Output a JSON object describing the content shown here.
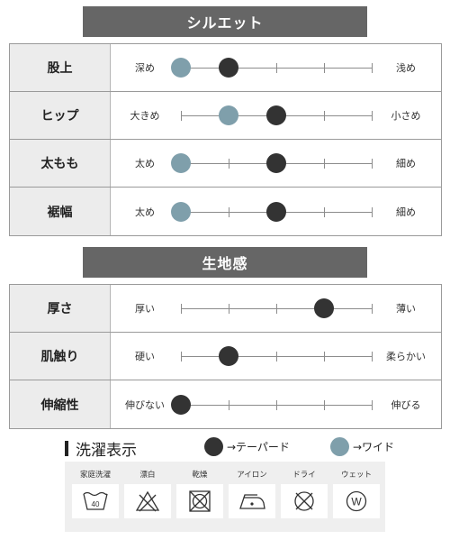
{
  "silhouette": {
    "title": "シルエット",
    "rows": [
      {
        "label": "股上",
        "left": "深め",
        "right": "浅め",
        "wide": 1,
        "taper": 2
      },
      {
        "label": "ヒップ",
        "left": "大きめ",
        "right": "小さめ",
        "wide": 2,
        "taper": 3
      },
      {
        "label": "太もも",
        "left": "太め",
        "right": "細め",
        "wide": 1,
        "taper": 3
      },
      {
        "label": "裾幅",
        "left": "太め",
        "right": "細め",
        "wide": 1,
        "taper": 3
      }
    ]
  },
  "fabric": {
    "title": "生地感",
    "rows": [
      {
        "label": "厚さ",
        "left": "厚い",
        "right": "薄い",
        "value": 4
      },
      {
        "label": "肌触り",
        "left": "硬い",
        "right": "柔らかい",
        "value": 2
      },
      {
        "label": "伸縮性",
        "left": "伸びない",
        "right": "伸びる",
        "value": 1
      }
    ]
  },
  "care": {
    "title": "洗濯表示",
    "items": [
      {
        "caption": "家庭洗濯",
        "icon": "wash-40-icon",
        "temp": "40"
      },
      {
        "caption": "漂白",
        "icon": "no-bleach-icon"
      },
      {
        "caption": "乾燥",
        "icon": "no-tumble-dry-icon"
      },
      {
        "caption": "アイロン",
        "icon": "iron-low-icon"
      },
      {
        "caption": "ドライ",
        "icon": "no-dry-clean-icon"
      },
      {
        "caption": "ウェット",
        "icon": "wet-clean-icon",
        "mark": "W"
      }
    ]
  },
  "legend": {
    "tapered": "→テーパード",
    "wide": "→ワイド"
  },
  "colors": {
    "header_bg": "#666666",
    "tapered_dot": "#333333",
    "wide_dot": "#7f9fab"
  }
}
